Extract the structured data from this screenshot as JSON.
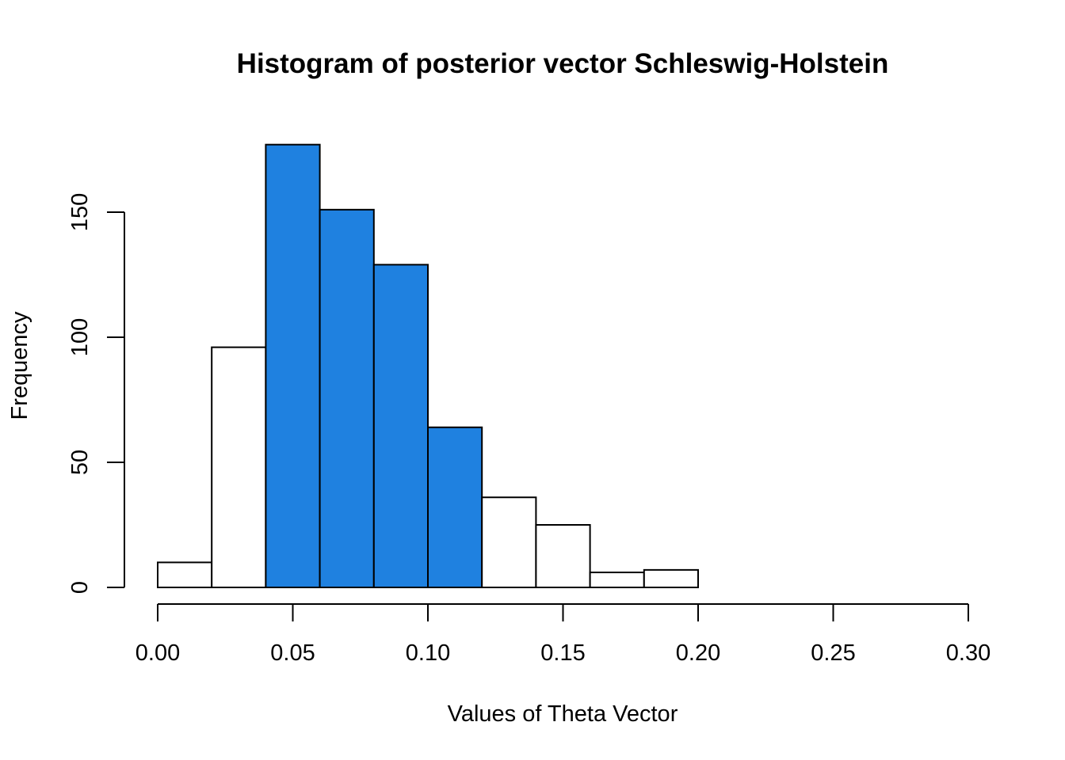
{
  "chart_data": {
    "type": "bar",
    "subtype": "histogram",
    "title": "Histogram of posterior vector Schleswig-Holstein",
    "xlabel": "Values of Theta Vector",
    "ylabel": "Frequency",
    "xlim": [
      0,
      0.3
    ],
    "ylim": [
      0,
      180
    ],
    "x_ticks": [
      0.0,
      0.05,
      0.1,
      0.15,
      0.2,
      0.25,
      0.3
    ],
    "x_tick_labels": [
      "0.00",
      "0.05",
      "0.10",
      "0.15",
      "0.20",
      "0.25",
      "0.30"
    ],
    "y_ticks": [
      0,
      50,
      100,
      150
    ],
    "y_tick_labels": [
      "0",
      "50",
      "100",
      "150"
    ],
    "grid": false,
    "highlight_color": "#1F81E0",
    "default_color": "#FFFFFF",
    "bins": [
      {
        "start": 0.0,
        "end": 0.02,
        "count": 10,
        "highlighted": false
      },
      {
        "start": 0.02,
        "end": 0.04,
        "count": 96,
        "highlighted": false
      },
      {
        "start": 0.04,
        "end": 0.06,
        "count": 177,
        "highlighted": true
      },
      {
        "start": 0.06,
        "end": 0.08,
        "count": 151,
        "highlighted": true
      },
      {
        "start": 0.08,
        "end": 0.1,
        "count": 129,
        "highlighted": true
      },
      {
        "start": 0.1,
        "end": 0.12,
        "count": 64,
        "highlighted": true
      },
      {
        "start": 0.12,
        "end": 0.14,
        "count": 36,
        "highlighted": false
      },
      {
        "start": 0.14,
        "end": 0.16,
        "count": 25,
        "highlighted": false
      },
      {
        "start": 0.16,
        "end": 0.18,
        "count": 6,
        "highlighted": false
      },
      {
        "start": 0.18,
        "end": 0.2,
        "count": 7,
        "highlighted": false
      }
    ]
  }
}
